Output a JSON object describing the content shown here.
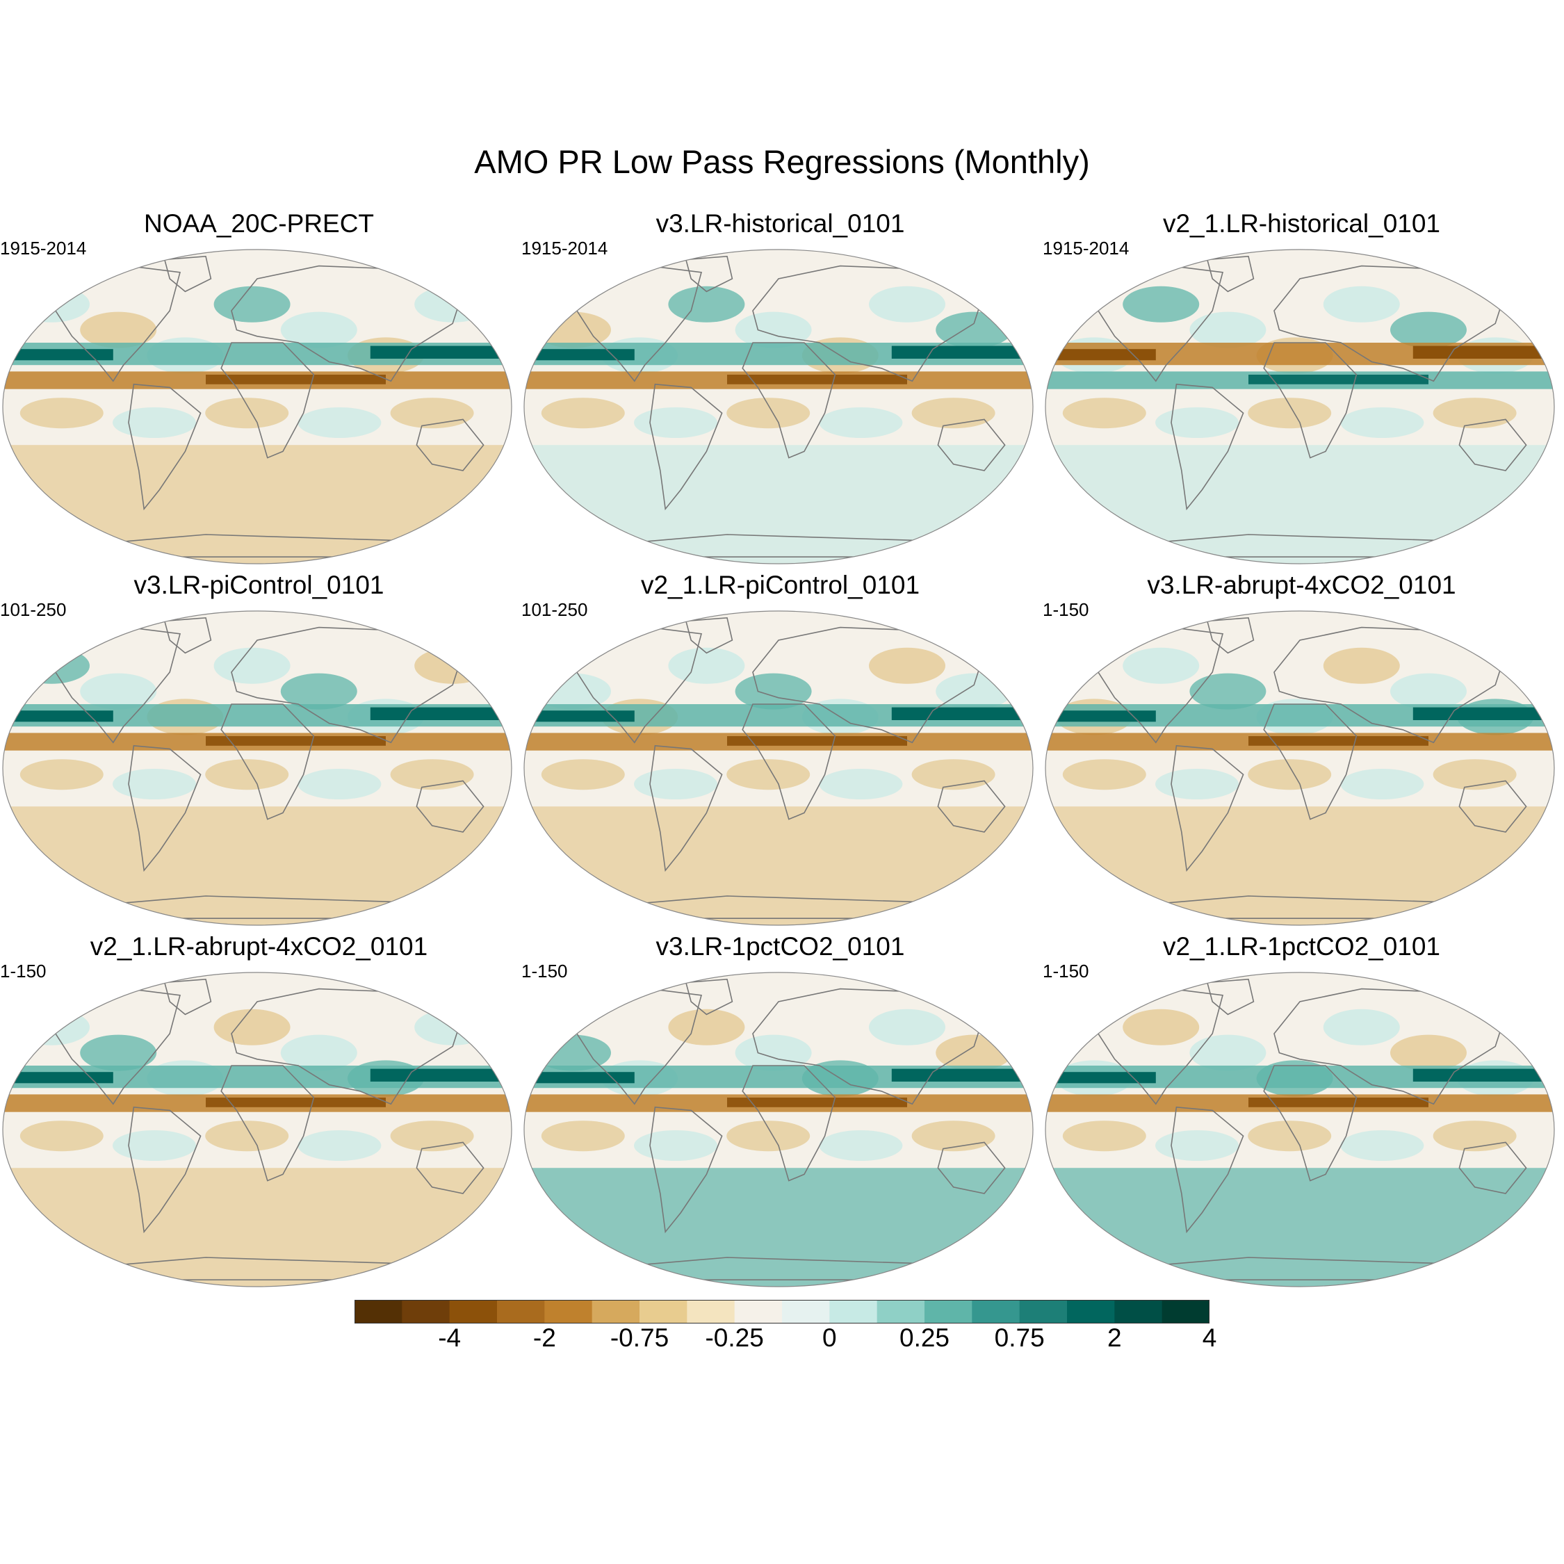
{
  "title": "AMO PR Low Pass Regressions (Monthly)",
  "panels": [
    {
      "title": "NOAA_20C-PRECT",
      "period": "1915-2014",
      "itcz": "mixed",
      "southern": "brown"
    },
    {
      "title": "v3.LR-historical_0101",
      "period": "1915-2014",
      "itcz": "teal-north",
      "southern": "teal-light"
    },
    {
      "title": "v2_1.LR-historical_0101",
      "period": "1915-2014",
      "itcz": "brown-north",
      "southern": "teal-light"
    },
    {
      "title": "v3.LR-piControl_0101",
      "period": "101-250",
      "itcz": "teal-north",
      "southern": "brown"
    },
    {
      "title": "v2_1.LR-piControl_0101",
      "period": "101-250",
      "itcz": "teal-north",
      "southern": "brown"
    },
    {
      "title": "v3.LR-abrupt-4xCO2_0101",
      "period": "1-150",
      "itcz": "teal-north",
      "southern": "brown"
    },
    {
      "title": "v2_1.LR-abrupt-4xCO2_0101",
      "period": "1-150",
      "itcz": "teal-north",
      "southern": "brown"
    },
    {
      "title": "v3.LR-1pctCO2_0101",
      "period": "1-150",
      "itcz": "teal-north",
      "southern": "teal"
    },
    {
      "title": "v2_1.LR-1pctCO2_0101",
      "period": "1-150",
      "itcz": "teal-north",
      "southern": "teal"
    }
  ],
  "colorbar": {
    "colors": [
      "#543005",
      "#6f3e0a",
      "#8c510a",
      "#a96b1e",
      "#bf812d",
      "#d6a95d",
      "#e8cc8f",
      "#f4e4bf",
      "#f5f1e9",
      "#e6f2f0",
      "#c7eae5",
      "#8fd0c6",
      "#5fb5a9",
      "#35978f",
      "#1d7f77",
      "#01665e",
      "#004f46",
      "#003c30"
    ],
    "labels": [
      {
        "text": "-4",
        "boundary": 2
      },
      {
        "text": "-2",
        "boundary": 4
      },
      {
        "text": "-0.75",
        "boundary": 6
      },
      {
        "text": "-0.25",
        "boundary": 8
      },
      {
        "text": "0",
        "boundary": 10
      },
      {
        "text": "0.25",
        "boundary": 12
      },
      {
        "text": "0.75",
        "boundary": 14
      },
      {
        "text": "2",
        "boundary": 16
      },
      {
        "text": "4",
        "boundary": 18
      }
    ]
  },
  "palette": {
    "brown_dark": "#8c510a",
    "brown_mid": "#bf812d",
    "brown_light": "#e3c78f",
    "neutral": "#f5f1e9",
    "teal_light": "#c7eae5",
    "teal_mid": "#5fb5a9",
    "teal_dark": "#01665e",
    "coast": "#777777",
    "border": "#888888"
  }
}
